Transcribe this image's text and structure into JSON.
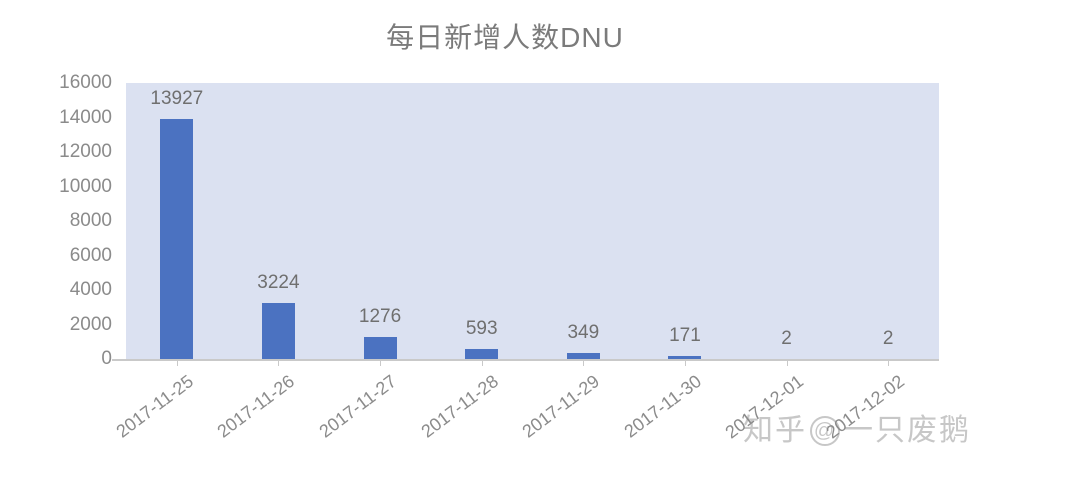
{
  "chart_data": {
    "type": "bar",
    "title": "每日新增人数DNU",
    "categories": [
      "2017-11-25",
      "2017-11-26",
      "2017-11-27",
      "2017-11-28",
      "2017-11-29",
      "2017-11-30",
      "2017-12-01",
      "2017-12-02"
    ],
    "values": [
      13927,
      3224,
      1276,
      593,
      349,
      171,
      2,
      2
    ],
    "data_labels": [
      "13927",
      "3224",
      "1276",
      "593",
      "349",
      "171",
      "2",
      "2"
    ],
    "xlabel": "",
    "ylabel": "",
    "ylim": [
      0,
      16000
    ],
    "yticks": [
      0,
      2000,
      4000,
      6000,
      8000,
      10000,
      12000,
      14000,
      16000
    ],
    "grid": false,
    "legend_position": "none",
    "bar_color": "#4b72c1",
    "plot_background": "#dbe1f1",
    "axis_line_color": "#c9c9c9",
    "tick_label_color": "#8b8b8b",
    "data_label_color": "#6f6f6f",
    "title_color": "#7b7b7b"
  },
  "watermark": {
    "prefix": "知乎",
    "at": "@",
    "suffix": "一只废鹅",
    "color": "#c7c7c7"
  }
}
